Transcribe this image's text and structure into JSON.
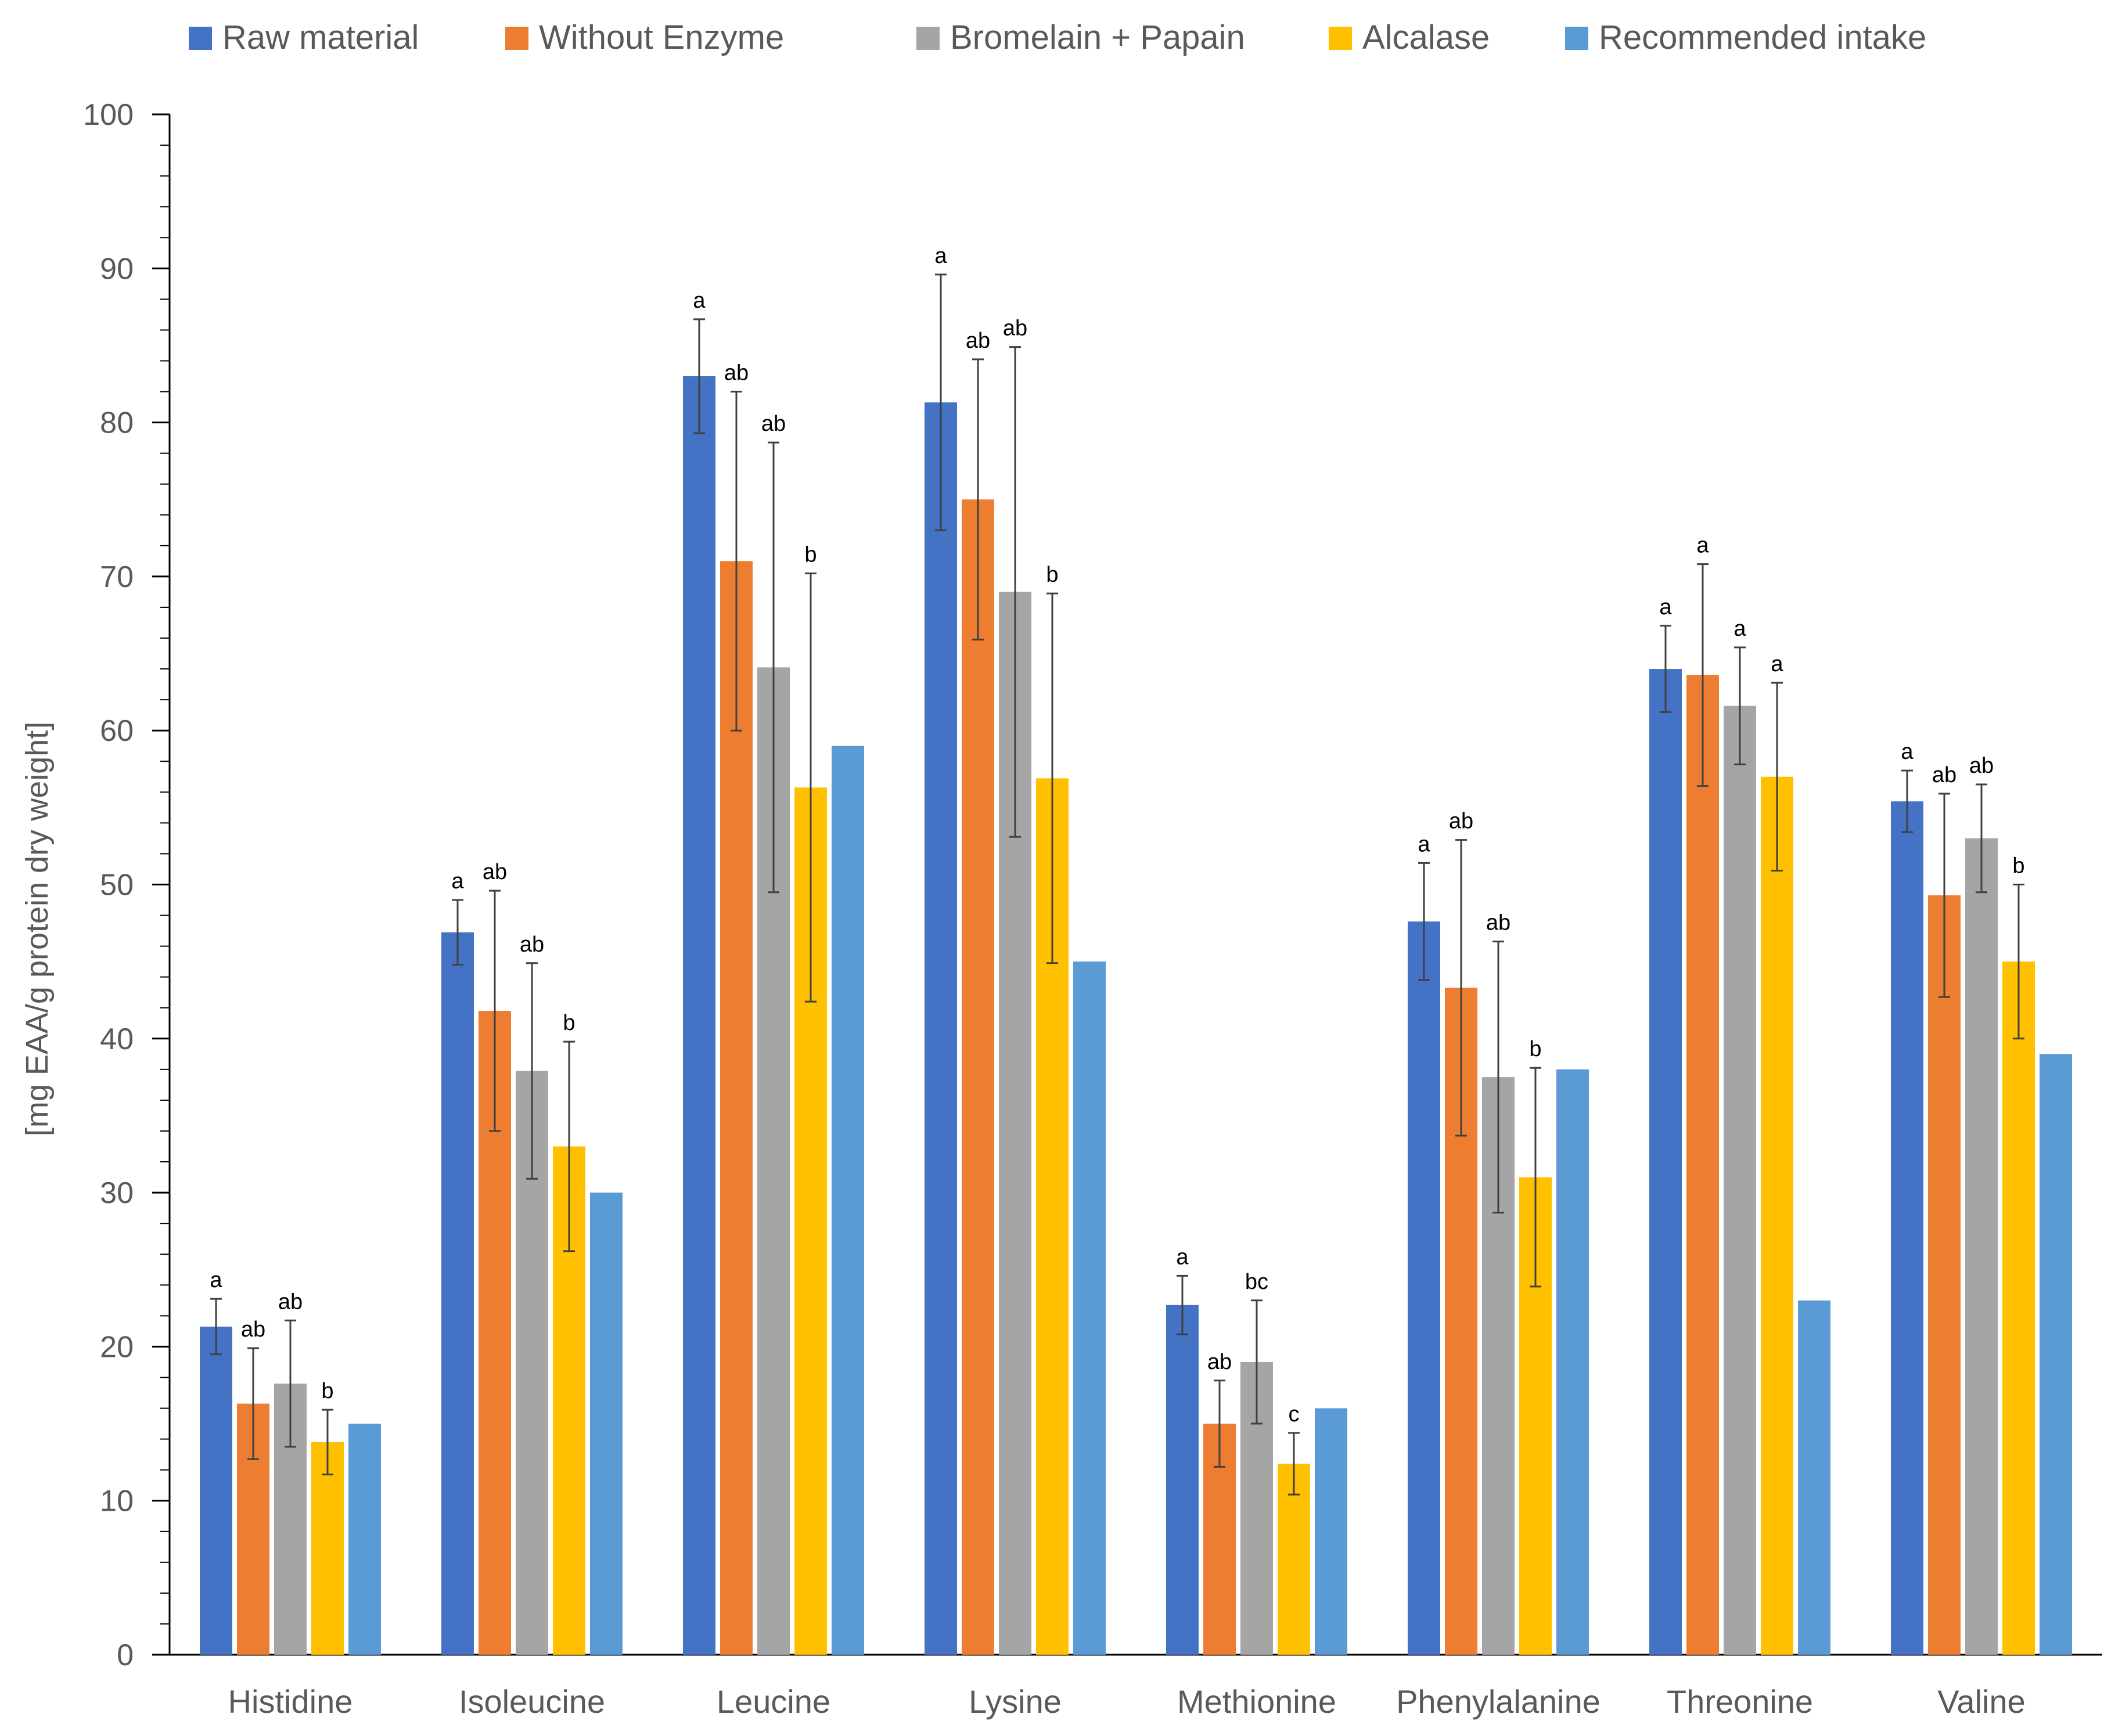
{
  "chart_data": {
    "type": "bar",
    "title": "",
    "xlabel": "",
    "ylabel": "[mg EAA/g protein dry weight]",
    "ylim": [
      0,
      100
    ],
    "yticks": [
      0,
      10,
      20,
      30,
      40,
      50,
      60,
      70,
      80,
      90,
      100
    ],
    "ytick_labels": [
      "0",
      "10",
      "20",
      "30",
      "40",
      "50",
      "60",
      "70",
      "80",
      "90",
      "100"
    ],
    "legend_position": "top",
    "categories": [
      "Histidine",
      "Isoleucine",
      "Leucine",
      "Lysine",
      "Methionine",
      "Phenylalanine",
      "Threonine",
      "Valine"
    ],
    "series": [
      {
        "name": "Raw material",
        "color": "#4472C4",
        "values": [
          21.3,
          46.9,
          83.0,
          81.3,
          22.7,
          47.6,
          64.0,
          55.4
        ],
        "errors": [
          1.8,
          2.1,
          3.7,
          8.3,
          1.9,
          3.8,
          2.8,
          2.0
        ],
        "labels": [
          "a",
          "a",
          "a",
          "a",
          "a",
          "a",
          "a",
          "a"
        ]
      },
      {
        "name": "Without Enzyme",
        "color": "#ED7D31",
        "values": [
          16.3,
          41.8,
          71.0,
          75.0,
          15.0,
          43.3,
          63.6,
          49.3
        ],
        "errors": [
          3.6,
          7.8,
          11.0,
          9.1,
          2.8,
          9.6,
          7.2,
          6.6
        ],
        "labels": [
          "ab",
          "ab",
          "ab",
          "ab",
          "ab",
          "ab",
          "a",
          "ab"
        ]
      },
      {
        "name": "Bromelain + Papain",
        "color": "#A5A5A5",
        "values": [
          17.6,
          37.9,
          64.1,
          69.0,
          19.0,
          37.5,
          61.6,
          53.0
        ],
        "errors": [
          4.1,
          7.0,
          14.6,
          15.9,
          4.0,
          8.8,
          3.8,
          3.5
        ],
        "labels": [
          "ab",
          "ab",
          "ab",
          "ab",
          "bc",
          "ab",
          "a",
          "ab"
        ]
      },
      {
        "name": "Alcalase",
        "color": "#FFC000",
        "values": [
          13.8,
          33.0,
          56.3,
          56.9,
          12.4,
          31.0,
          57.0,
          45.0
        ],
        "errors": [
          2.1,
          6.8,
          13.9,
          12.0,
          2.0,
          7.1,
          6.1,
          5.0
        ],
        "labels": [
          "b",
          "b",
          "b",
          "b",
          "c",
          "b",
          "a",
          "b"
        ]
      },
      {
        "name": "Recommended intake",
        "color": "#5B9BD5",
        "values": [
          15.0,
          30.0,
          59.0,
          45.0,
          16.0,
          38.0,
          23.0,
          39.0
        ],
        "errors": [
          null,
          null,
          null,
          null,
          null,
          null,
          null,
          null
        ],
        "labels": [
          "",
          "",
          "",
          "",
          "",
          "",
          "",
          ""
        ]
      }
    ]
  }
}
